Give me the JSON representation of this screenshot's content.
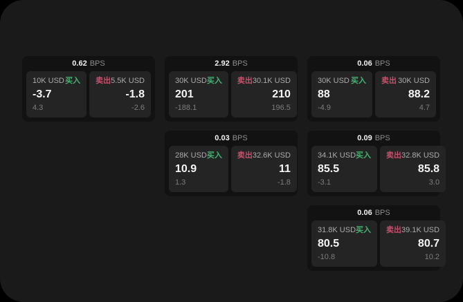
{
  "labels": {
    "buy": "买入",
    "sell": "卖出",
    "bps_unit": "BPS"
  },
  "colors": {
    "outer_bg": "#000000",
    "panel_bg": "#1a1a1a",
    "card_bg": "#121212",
    "tile_bg": "#242424",
    "buy_green": "#44b371",
    "sell_red": "#c4506b",
    "value_white": "#f5f5f5",
    "label_gray": "#ababab",
    "sub_gray": "#7d7d7d"
  },
  "cards": [
    {
      "col": 1,
      "row": 1,
      "bps": "0.62",
      "buy": {
        "amount": "10K USD",
        "price": "-3.7",
        "sub": "4.3"
      },
      "sell": {
        "amount": "5.5K USD",
        "price": "-1.8",
        "sub": "-2.6"
      }
    },
    {
      "col": 2,
      "row": 1,
      "bps": "2.92",
      "buy": {
        "amount": "30K USD",
        "price": "201",
        "sub": "-188.1"
      },
      "sell": {
        "amount": "30.1K USD",
        "price": "210",
        "sub": "196.5"
      }
    },
    {
      "col": 3,
      "row": 1,
      "bps": "0.06",
      "buy": {
        "amount": "30K USD",
        "price": "88",
        "sub": "-4.9"
      },
      "sell": {
        "amount": "30K USD",
        "price": "88.2",
        "sub": "4.7"
      }
    },
    {
      "col": 2,
      "row": 2,
      "bps": "0.03",
      "buy": {
        "amount": "28K USD",
        "price": "10.9",
        "sub": "1.3"
      },
      "sell": {
        "amount": "32.6K USD",
        "price": "11",
        "sub": "-1.8"
      }
    },
    {
      "col": 3,
      "row": 2,
      "bps": "0.09",
      "buy": {
        "amount": "34.1K USD",
        "price": "85.5",
        "sub": "-3.1"
      },
      "sell": {
        "amount": "32.8K USD",
        "price": "85.8",
        "sub": "3.0"
      }
    },
    {
      "col": 3,
      "row": 3,
      "bps": "0.06",
      "buy": {
        "amount": "31.8K USD",
        "price": "80.5",
        "sub": "-10.8"
      },
      "sell": {
        "amount": "39.1K USD",
        "price": "80.7",
        "sub": "10.2"
      }
    }
  ]
}
